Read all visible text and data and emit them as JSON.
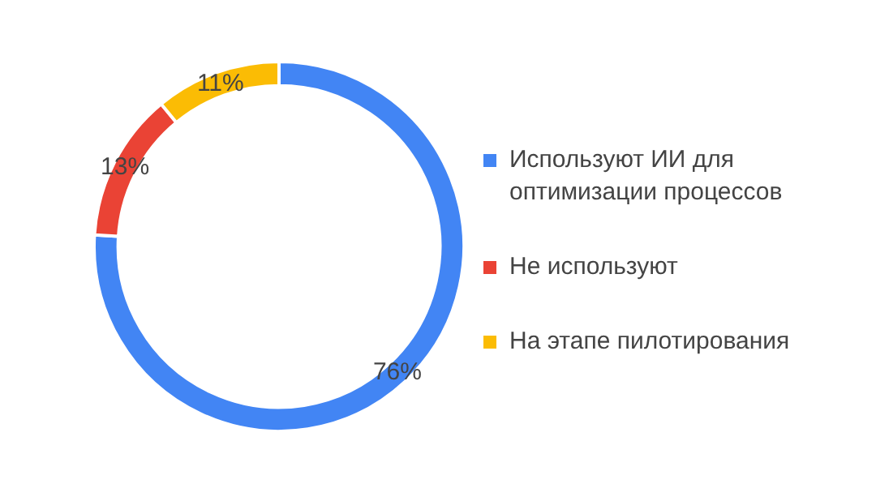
{
  "chart_data": {
    "type": "donut",
    "categories": [
      "Используют ИИ для оптимизации процессов",
      "Не используют",
      "На этапе пилотирования"
    ],
    "values": [
      76,
      13,
      11
    ],
    "colors": [
      "#4285f4",
      "#ea4335",
      "#fbbc04"
    ],
    "value_labels": [
      "76%",
      "13%",
      "11%"
    ],
    "legend": "right"
  }
}
